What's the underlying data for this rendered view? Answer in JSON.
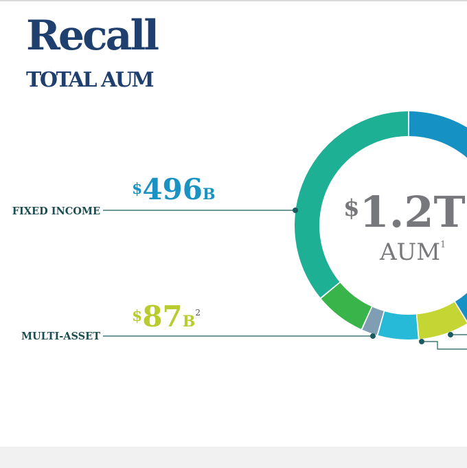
{
  "header": {
    "title": "Recall",
    "subtitle": "TOTAL AUM"
  },
  "chart_data": {
    "type": "pie",
    "style": "donut",
    "center": {
      "currency": "$",
      "value": "1.2T",
      "label": "AUM",
      "footnote": "1"
    },
    "segments": [
      {
        "name": "FIXED INCOME",
        "currency": "$",
        "amount": "496",
        "unit": "B",
        "footnote": "",
        "value": 496,
        "color": "#1592c3",
        "labeled": true
      },
      {
        "name": "MULTI-ASSET",
        "currency": "$",
        "amount": "87",
        "unit": "B",
        "footnote": "2",
        "value": 87,
        "color": "#c5d534",
        "labeled": true
      },
      {
        "name": "",
        "value": 70,
        "color": "#26bad8",
        "labeled": false
      },
      {
        "name": "",
        "value": 28,
        "color": "#7f9db3",
        "labeled": false
      },
      {
        "name": "",
        "value": 87,
        "color": "#38b44a",
        "labeled": false
      },
      {
        "name": "",
        "value": 432,
        "color": "#1eb095",
        "labeled": false
      }
    ],
    "colors": {
      "fixed_income_value": "#1a93c3",
      "multi_asset_value": "#b9cc2f",
      "category_label": "#1b4d52",
      "leader_line": "#1b5a5e",
      "center_text": "#77787b"
    }
  }
}
